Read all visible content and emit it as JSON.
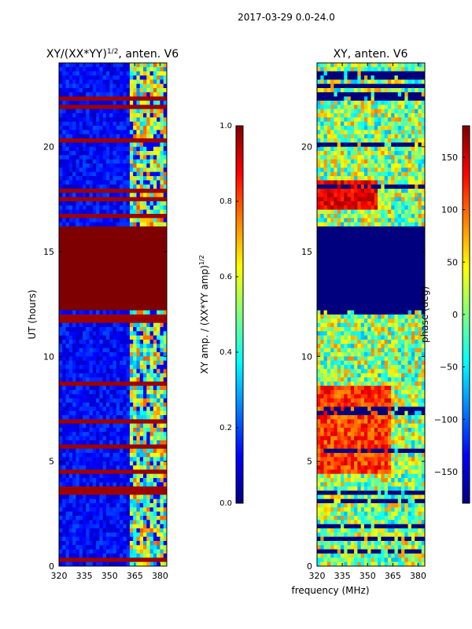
{
  "figure": {
    "suptitle": "2017-03-29 0.0-24.0",
    "shared_xlabel": "frequency (MHz)"
  },
  "colors": {
    "jet": [
      "#00007f",
      "#0000ff",
      "#007fff",
      "#00ffff",
      "#7fff7f",
      "#ffff00",
      "#ff7f00",
      "#ff0000",
      "#7f0000"
    ]
  },
  "chart_data": [
    {
      "type": "heatmap",
      "title": "XY/(XX*YY)^1/2, anten. V6",
      "title_main": "XY/(XX*YY)",
      "title_sup": "1/2",
      "title_tail": ", anten. V6",
      "xlabel": "",
      "ylabel": "UT (hours)",
      "xlim": [
        320,
        384
      ],
      "ylim": [
        0,
        24
      ],
      "xticks": [
        320,
        335,
        350,
        365,
        380
      ],
      "yticks": [
        0,
        5,
        10,
        15,
        20
      ],
      "colorbar": {
        "label": "XY amp. / (XX*YY amp)^1/2",
        "label_main": "XY amp. / (XX*YY amp)",
        "label_sup": "1/2",
        "range": [
          0.0,
          1.0
        ],
        "ticks": [
          "0.0",
          "0.2",
          "0.4",
          "0.6",
          "0.8",
          "1.0"
        ]
      },
      "regions": [
        {
          "desc": "flagged (saturated) block",
          "t_start": 12.2,
          "t_end": 16.2,
          "value": 1.0
        },
        {
          "desc": "bright channels band",
          "f_start": 363,
          "f_end": 384,
          "value_range": [
            0.3,
            0.75
          ]
        },
        {
          "desc": "background",
          "value_range": [
            0.05,
            0.2
          ]
        }
      ]
    },
    {
      "type": "heatmap",
      "title": "XY, anten. V6",
      "xlabel": "frequency (MHz)",
      "ylabel": "",
      "xlim": [
        320,
        384
      ],
      "ylim": [
        0,
        24
      ],
      "xticks": [
        320,
        335,
        350,
        365,
        380
      ],
      "yticks": [
        0,
        5,
        10,
        15,
        20
      ],
      "colorbar": {
        "label": "phase (deg)",
        "range": [
          -180,
          180
        ],
        "ticks": [
          "150",
          "100",
          "50",
          "0",
          "−50",
          "−100",
          "−150"
        ]
      },
      "regions": [
        {
          "desc": "flagged block",
          "t_start": 12.2,
          "t_end": 16.2,
          "value": -180
        },
        {
          "desc": "high phase patch",
          "t_start": 4.5,
          "t_end": 8.5,
          "value_range": [
            100,
            160
          ]
        },
        {
          "desc": "high phase patch",
          "t_start": 17.0,
          "t_end": 18.3,
          "value_range": [
            130,
            170
          ]
        }
      ]
    }
  ]
}
